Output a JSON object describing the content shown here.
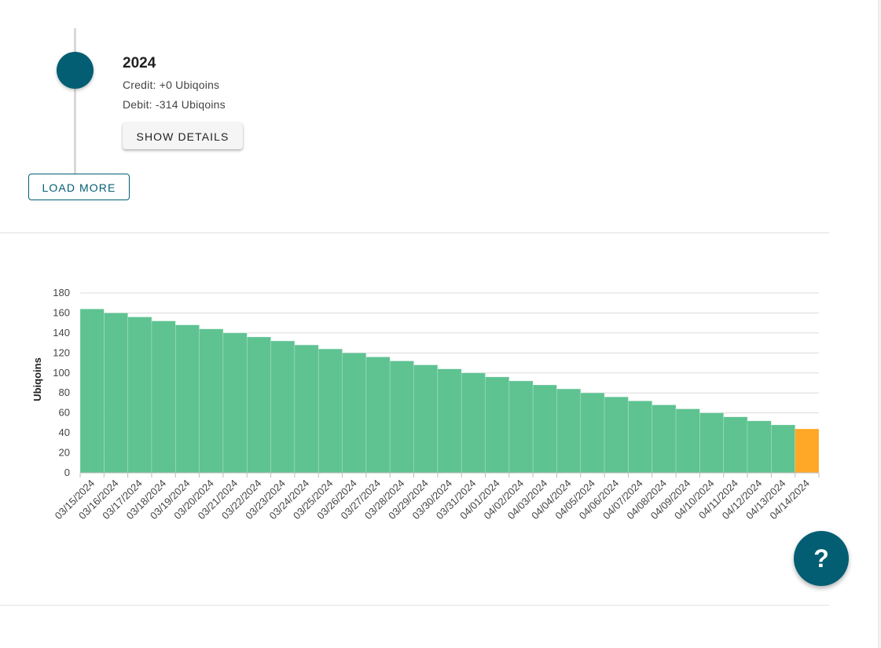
{
  "timeline": {
    "entry": {
      "year": "2024",
      "credit": "Credit: +0 Ubiqoins",
      "debit": "Debit: -314 Ubiqoins",
      "details_label": "SHOW DETAILS"
    },
    "load_more_label": "LOAD MORE"
  },
  "help_label": "?",
  "colors": {
    "accent": "#035e73",
    "bar_default": "#5ec391",
    "bar_current": "#ffa726"
  },
  "chart_data": {
    "type": "bar",
    "title": "",
    "xlabel": "",
    "ylabel": "Ubiqoins",
    "ylim": [
      0,
      180
    ],
    "yticks": [
      0,
      20,
      40,
      60,
      80,
      100,
      120,
      140,
      160,
      180
    ],
    "grid": true,
    "categories": [
      "03/15/2024",
      "03/16/2024",
      "03/17/2024",
      "03/18/2024",
      "03/19/2024",
      "03/20/2024",
      "03/21/2024",
      "03/22/2024",
      "03/23/2024",
      "03/24/2024",
      "03/25/2024",
      "03/26/2024",
      "03/27/2024",
      "03/28/2024",
      "03/29/2024",
      "03/30/2024",
      "03/31/2024",
      "04/01/2024",
      "04/02/2024",
      "04/03/2024",
      "04/04/2024",
      "04/05/2024",
      "04/06/2024",
      "04/07/2024",
      "04/08/2024",
      "04/09/2024",
      "04/10/2024",
      "04/11/2024",
      "04/12/2024",
      "04/13/2024",
      "04/14/2024"
    ],
    "values": [
      164,
      160,
      156,
      152,
      148,
      144,
      140,
      136,
      132,
      128,
      124,
      120,
      116,
      112,
      108,
      104,
      100,
      96,
      92,
      88,
      84,
      80,
      76,
      72,
      68,
      64,
      60,
      56,
      52,
      48,
      44
    ],
    "highlight_index": 30
  }
}
